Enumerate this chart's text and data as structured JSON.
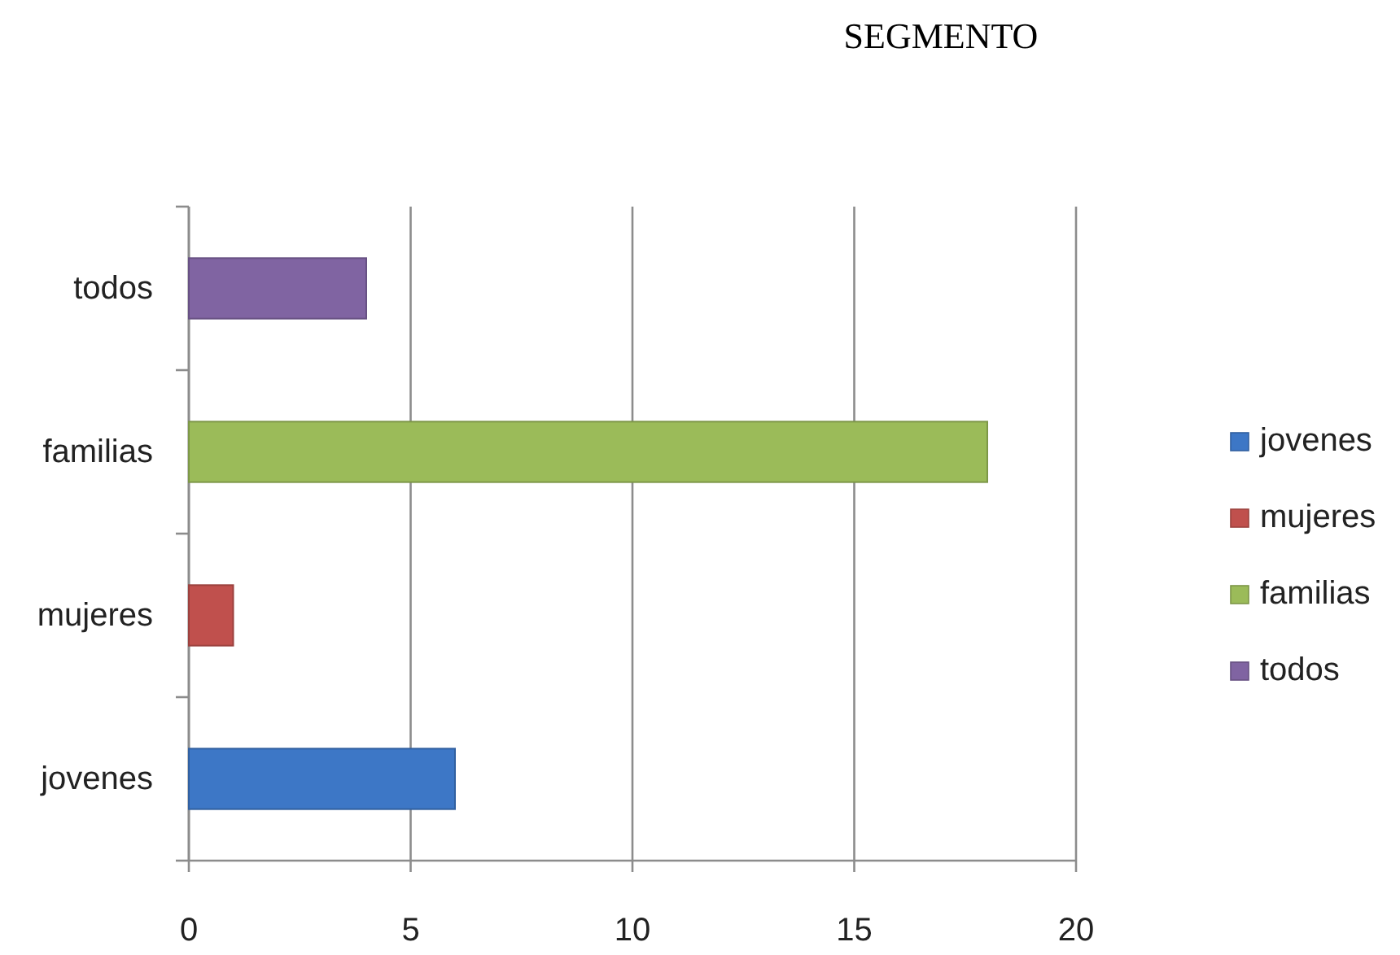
{
  "chart_data": {
    "type": "bar",
    "orientation": "horizontal",
    "stacked": true,
    "title": "SEGMENTO",
    "categories": [
      "todos",
      "familias",
      "mujeres",
      "jovenes"
    ],
    "series": [
      {
        "name": "jovenes",
        "color": "#3d77c6",
        "values": [
          null,
          null,
          null,
          6
        ]
      },
      {
        "name": "mujeres",
        "color": "#c0504d",
        "values": [
          null,
          null,
          1,
          null
        ]
      },
      {
        "name": "familias",
        "color": "#9bbb59",
        "values": [
          null,
          18,
          null,
          null
        ]
      },
      {
        "name": "todos",
        "color": "#8064a2",
        "values": [
          4,
          null,
          null,
          null
        ]
      }
    ],
    "xlim": [
      0,
      20
    ],
    "xticks": [
      0,
      5,
      10,
      15,
      20
    ],
    "grid": "x",
    "legend": "right"
  }
}
